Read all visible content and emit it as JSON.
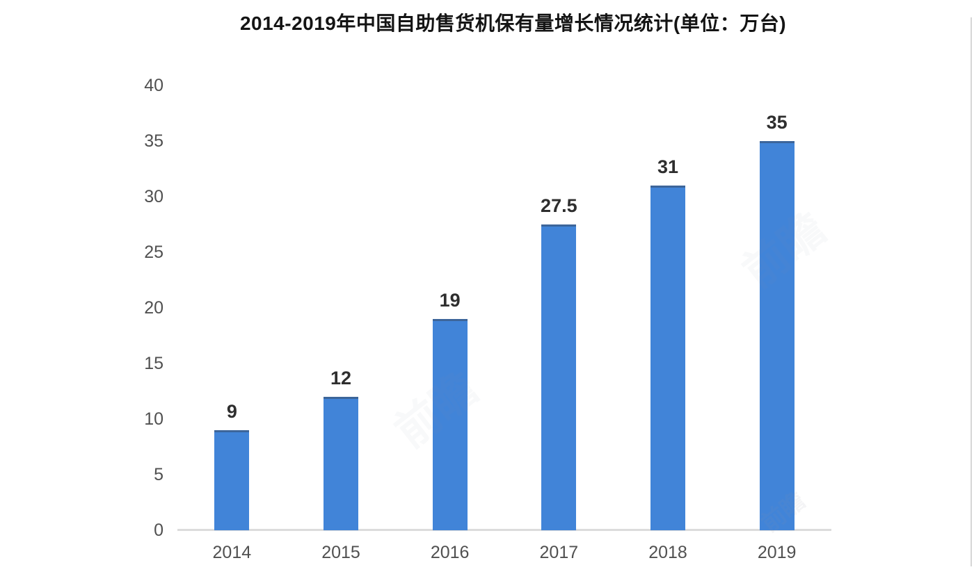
{
  "page": {
    "watermark_text": "前瞻"
  },
  "chart_data": {
    "type": "bar",
    "title": "2014-2019年中国自助售货机保有量增长情况统计(单位：万台)",
    "categories": [
      "2014",
      "2015",
      "2016",
      "2017",
      "2018",
      "2019"
    ],
    "values": [
      9,
      12,
      19,
      27.5,
      31,
      35
    ],
    "value_labels": [
      "9",
      "12",
      "19",
      "27.5",
      "31",
      "35"
    ],
    "unit": "万台",
    "xlabel": "",
    "ylabel": "",
    "ylim": [
      0,
      40
    ],
    "ytick_step": 5,
    "yticks": [
      0,
      5,
      10,
      15,
      20,
      25,
      30,
      35,
      40
    ],
    "bar_color": "#4184d8",
    "axis_line_color": "#dcdcdc",
    "grid": false,
    "legend": false
  }
}
